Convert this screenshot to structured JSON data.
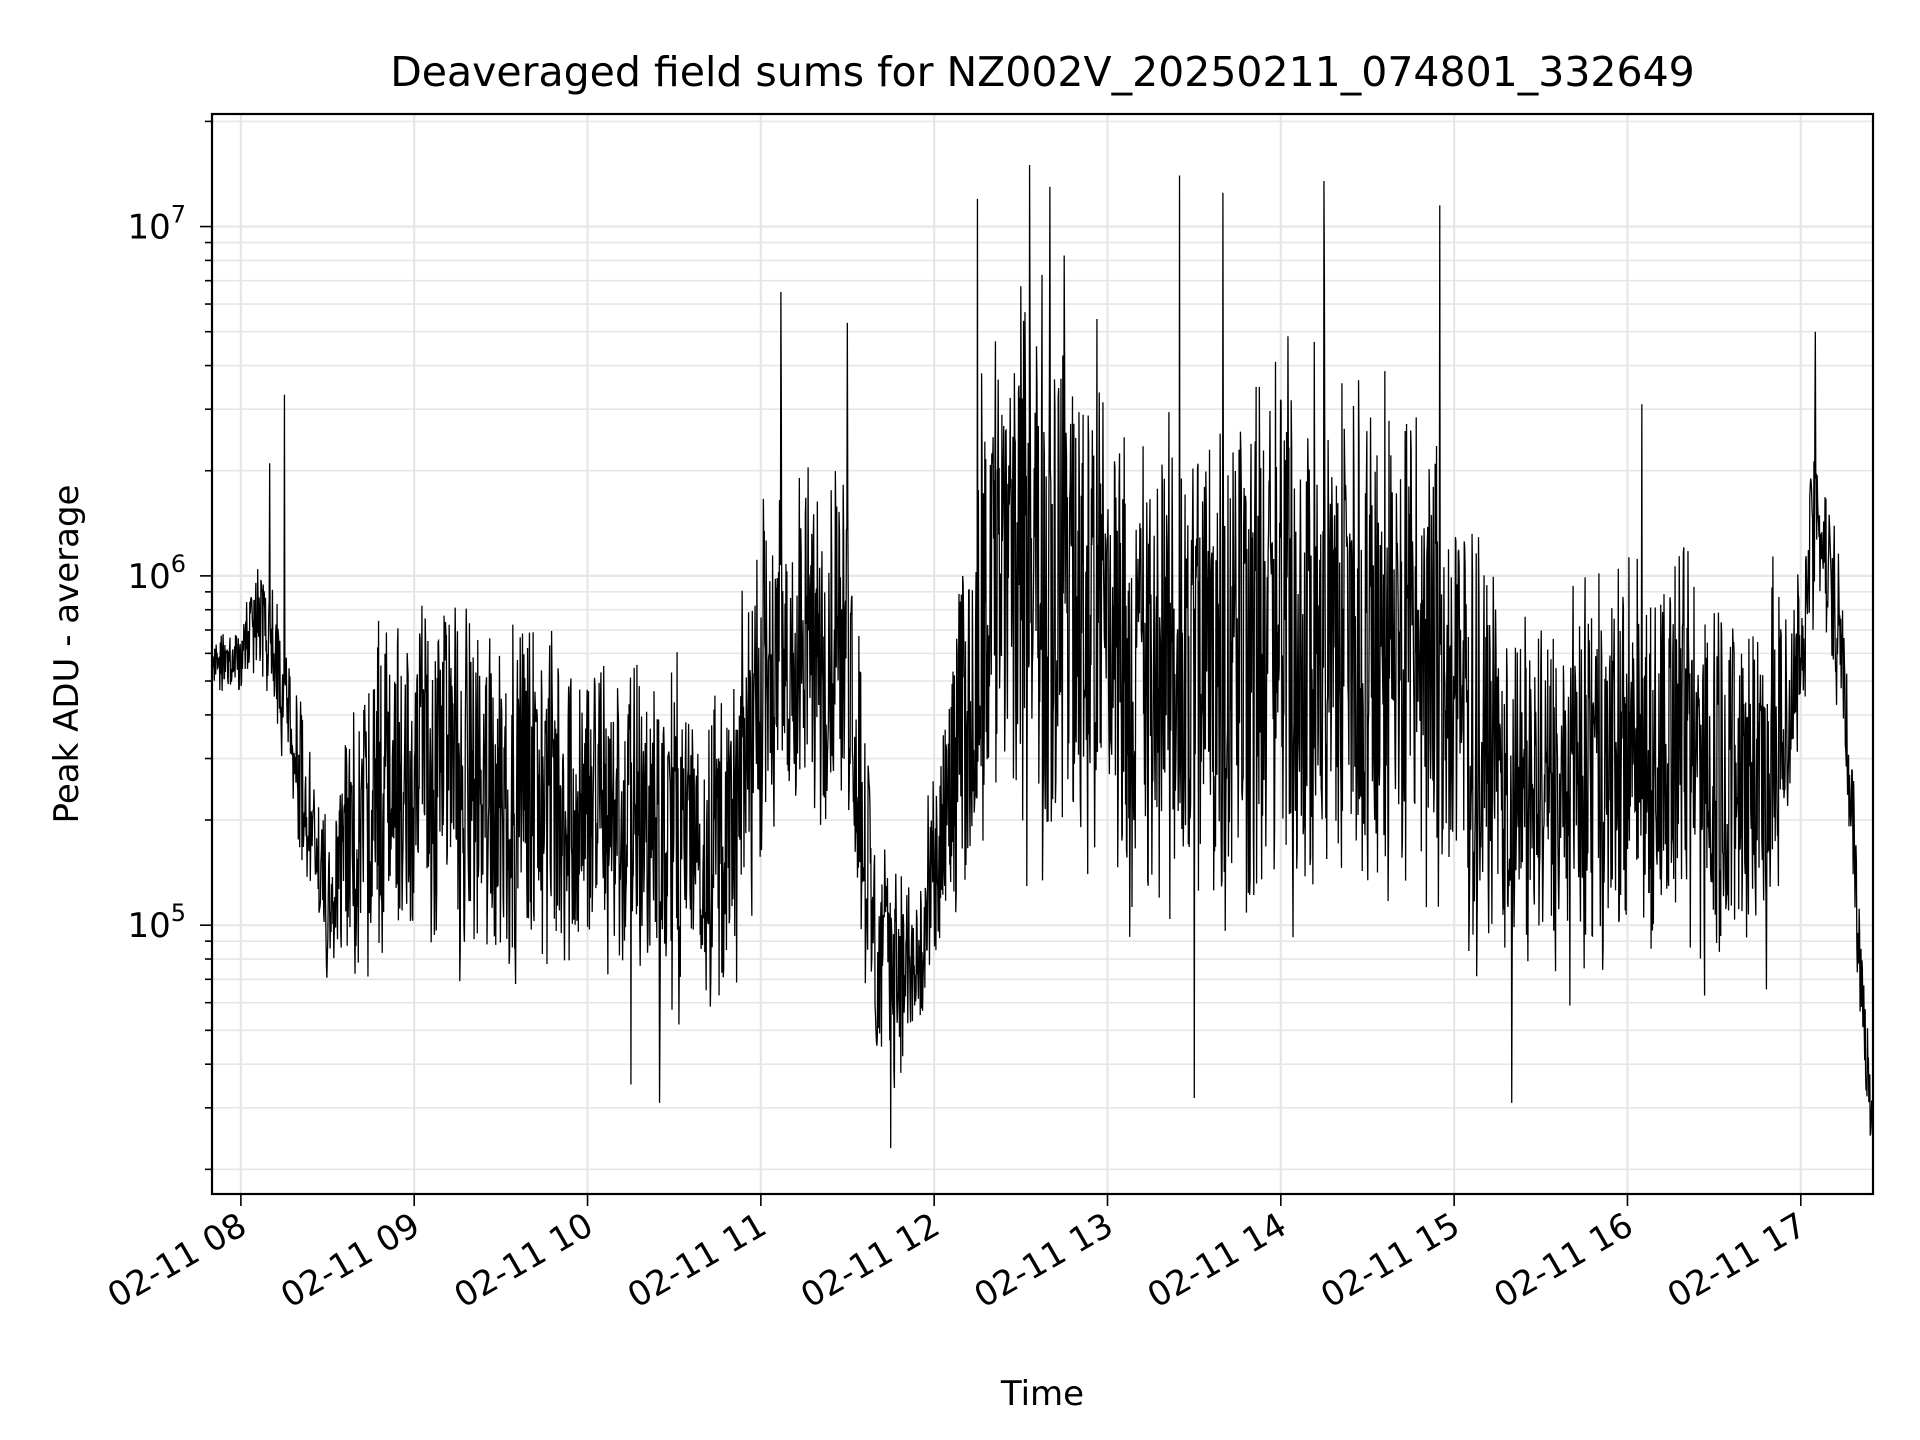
{
  "chart_data": {
    "type": "line",
    "title": "Deaveraged field sums for NZ002V_20250211_074801_332649",
    "xlabel": "Time",
    "ylabel": "Peak ADU - average",
    "yscale": "log",
    "ylim": [
      17000,
      21000000
    ],
    "xlim": [
      "2025-02-11 07:50",
      "2025-02-11 17:25"
    ],
    "grid": true,
    "color": "#000000",
    "xticks": [
      {
        "value": "2025-02-11 08:00",
        "label": "02-11 08"
      },
      {
        "value": "2025-02-11 09:00",
        "label": "02-11 09"
      },
      {
        "value": "2025-02-11 10:00",
        "label": "02-11 10"
      },
      {
        "value": "2025-02-11 11:00",
        "label": "02-11 11"
      },
      {
        "value": "2025-02-11 12:00",
        "label": "02-11 12"
      },
      {
        "value": "2025-02-11 13:00",
        "label": "02-11 13"
      },
      {
        "value": "2025-02-11 14:00",
        "label": "02-11 14"
      },
      {
        "value": "2025-02-11 15:00",
        "label": "02-11 15"
      },
      {
        "value": "2025-02-11 16:00",
        "label": "02-11 16"
      },
      {
        "value": "2025-02-11 17:00",
        "label": "02-11 17"
      }
    ],
    "yticks": [
      {
        "value": 100000,
        "base": "10",
        "exp": "5"
      },
      {
        "value": 1000000,
        "base": "10",
        "exp": "6"
      },
      {
        "value": 10000000,
        "base": "10",
        "exp": "7"
      }
    ],
    "envelope": [
      {
        "t": "2025-02-11 07:50",
        "low": 450000,
        "high": 700000
      },
      {
        "t": "2025-02-11 08:00",
        "low": 450000,
        "high": 750000
      },
      {
        "t": "2025-02-11 08:05",
        "low": 500000,
        "high": 1300000
      },
      {
        "t": "2025-02-11 08:12",
        "low": 350000,
        "high": 1000000
      },
      {
        "t": "2025-02-11 08:20",
        "low": 150000,
        "high": 500000
      },
      {
        "t": "2025-02-11 08:30",
        "low": 60000,
        "high": 200000
      },
      {
        "t": "2025-02-11 08:45",
        "low": 60000,
        "high": 1000000
      },
      {
        "t": "2025-02-11 09:00",
        "low": 70000,
        "high": 1200000
      },
      {
        "t": "2025-02-11 09:30",
        "low": 60000,
        "high": 1000000
      },
      {
        "t": "2025-02-11 10:00",
        "low": 60000,
        "high": 800000
      },
      {
        "t": "2025-02-11 10:30",
        "low": 50000,
        "high": 700000
      },
      {
        "t": "2025-02-11 10:50",
        "low": 50000,
        "high": 600000
      },
      {
        "t": "2025-02-11 11:00",
        "low": 120000,
        "high": 2000000
      },
      {
        "t": "2025-02-11 11:30",
        "low": 150000,
        "high": 3000000
      },
      {
        "t": "2025-02-11 11:40",
        "low": 30000,
        "high": 200000
      },
      {
        "t": "2025-02-11 11:55",
        "low": 40000,
        "high": 150000
      },
      {
        "t": "2025-02-11 12:10",
        "low": 80000,
        "high": 1500000
      },
      {
        "t": "2025-02-11 12:20",
        "low": 150000,
        "high": 8000000
      },
      {
        "t": "2025-02-11 12:45",
        "low": 100000,
        "high": 10000000
      },
      {
        "t": "2025-02-11 13:00",
        "low": 100000,
        "high": 6000000
      },
      {
        "t": "2025-02-11 13:15",
        "low": 70000,
        "high": 3000000
      },
      {
        "t": "2025-02-11 13:45",
        "low": 70000,
        "high": 6000000
      },
      {
        "t": "2025-02-11 14:15",
        "low": 70000,
        "high": 7000000
      },
      {
        "t": "2025-02-11 14:45",
        "low": 80000,
        "high": 5000000
      },
      {
        "t": "2025-02-11 15:00",
        "low": 70000,
        "high": 2500000
      },
      {
        "t": "2025-02-11 15:20",
        "low": 60000,
        "high": 900000
      },
      {
        "t": "2025-02-11 15:40",
        "low": 60000,
        "high": 1000000
      },
      {
        "t": "2025-02-11 16:00",
        "low": 70000,
        "high": 1500000
      },
      {
        "t": "2025-02-11 16:30",
        "low": 55000,
        "high": 1500000
      },
      {
        "t": "2025-02-11 16:50",
        "low": 60000,
        "high": 1200000
      },
      {
        "t": "2025-02-11 17:00",
        "low": 300000,
        "high": 1200000
      },
      {
        "t": "2025-02-11 17:05",
        "low": 800000,
        "high": 3500000
      },
      {
        "t": "2025-02-11 17:15",
        "low": 300000,
        "high": 1100000
      },
      {
        "t": "2025-02-11 17:20",
        "low": 50000,
        "high": 150000
      },
      {
        "t": "2025-02-11 17:25",
        "low": 20000,
        "high": 30000
      }
    ],
    "peaks": [
      {
        "t": "2025-02-11 08:10",
        "y": 2100000
      },
      {
        "t": "2025-02-11 08:15",
        "y": 3300000
      },
      {
        "t": "2025-02-11 11:07",
        "y": 6500000
      },
      {
        "t": "2025-02-11 11:30",
        "y": 5300000
      },
      {
        "t": "2025-02-11 12:15",
        "y": 12000000
      },
      {
        "t": "2025-02-11 12:33",
        "y": 15000000
      },
      {
        "t": "2025-02-11 12:40",
        "y": 13000000
      },
      {
        "t": "2025-02-11 13:25",
        "y": 14000000
      },
      {
        "t": "2025-02-11 13:40",
        "y": 12500000
      },
      {
        "t": "2025-02-11 14:15",
        "y": 13500000
      },
      {
        "t": "2025-02-11 14:55",
        "y": 11500000
      },
      {
        "t": "2025-02-11 16:05",
        "y": 3100000
      },
      {
        "t": "2025-02-11 17:05",
        "y": 5000000
      }
    ],
    "dips": [
      {
        "t": "2025-02-11 10:15",
        "y": 35000
      },
      {
        "t": "2025-02-11 10:25",
        "y": 31000
      },
      {
        "t": "2025-02-11 11:45",
        "y": 23000
      },
      {
        "t": "2025-02-11 13:30",
        "y": 32000
      },
      {
        "t": "2025-02-11 15:20",
        "y": 31000
      },
      {
        "t": "2025-02-11 17:25",
        "y": 21000
      }
    ]
  }
}
